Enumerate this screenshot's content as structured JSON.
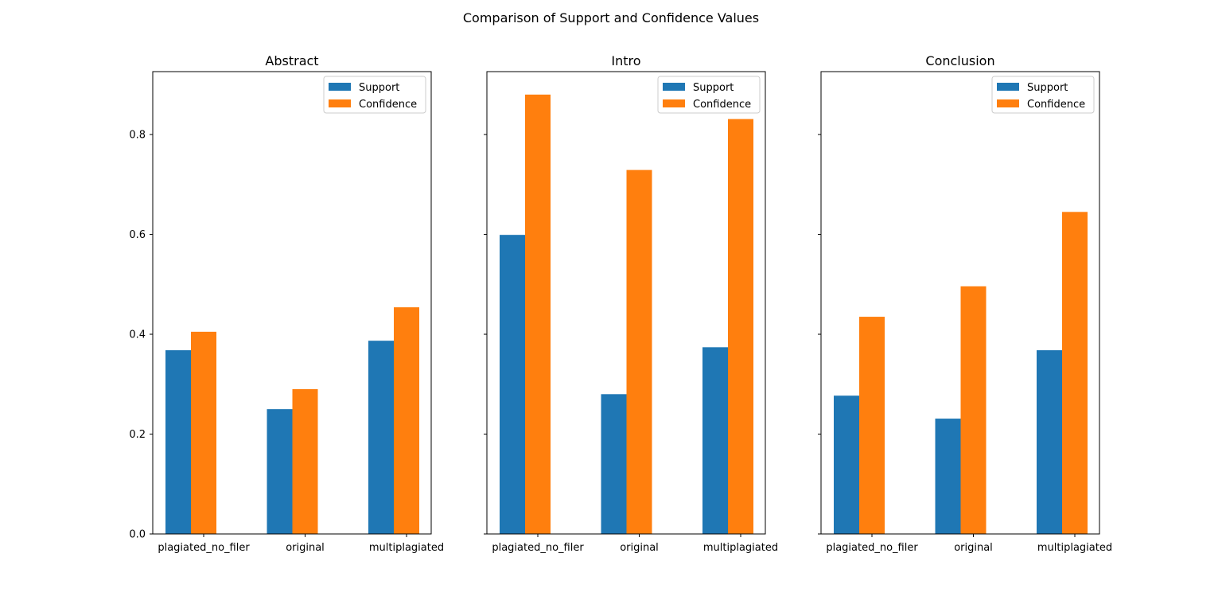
{
  "figure_title": "Comparison of Support and Confidence Values",
  "colors": {
    "support": "#1f77b4",
    "confidence": "#ff7f0e",
    "axes": "#000000",
    "background": "#ffffff",
    "legend_border": "#cccccc"
  },
  "chart_data": [
    {
      "type": "bar",
      "title": "Abstract",
      "categories": [
        "plagiated_no_filer",
        "original",
        "multiplagiated"
      ],
      "series": [
        {
          "name": "Support",
          "values": [
            0.368,
            0.25,
            0.387
          ]
        },
        {
          "name": "Confidence",
          "values": [
            0.405,
            0.29,
            0.454
          ]
        }
      ],
      "ylim": [
        0,
        0.926
      ],
      "yticks": [
        0.0,
        0.2,
        0.4,
        0.6,
        0.8
      ],
      "ytick_labels": [
        "0.0",
        "0.2",
        "0.4",
        "0.6",
        "0.8"
      ],
      "xlabel": "",
      "ylabel": "",
      "legend": "top-right",
      "grid": false
    },
    {
      "type": "bar",
      "title": "Intro",
      "categories": [
        "plagiated_no_filer",
        "original",
        "multiplagiated"
      ],
      "series": [
        {
          "name": "Support",
          "values": [
            0.599,
            0.28,
            0.374
          ]
        },
        {
          "name": "Confidence",
          "values": [
            0.88,
            0.729,
            0.831
          ]
        }
      ],
      "ylim": [
        0,
        0.926
      ],
      "yticks": [
        0.0,
        0.2,
        0.4,
        0.6,
        0.8
      ],
      "ytick_labels": [
        "",
        "",
        "",
        "",
        ""
      ],
      "xlabel": "",
      "ylabel": "",
      "legend": "top-right",
      "grid": false
    },
    {
      "type": "bar",
      "title": "Conclusion",
      "categories": [
        "plagiated_no_filer",
        "original",
        "multiplagiated"
      ],
      "series": [
        {
          "name": "Support",
          "values": [
            0.277,
            0.231,
            0.368
          ]
        },
        {
          "name": "Confidence",
          "values": [
            0.435,
            0.496,
            0.645
          ]
        }
      ],
      "ylim": [
        0,
        0.926
      ],
      "yticks": [
        0.0,
        0.2,
        0.4,
        0.6,
        0.8
      ],
      "ytick_labels": [
        "",
        "",
        "",
        "",
        ""
      ],
      "xlabel": "",
      "ylabel": "",
      "legend": "top-right",
      "grid": false
    }
  ]
}
